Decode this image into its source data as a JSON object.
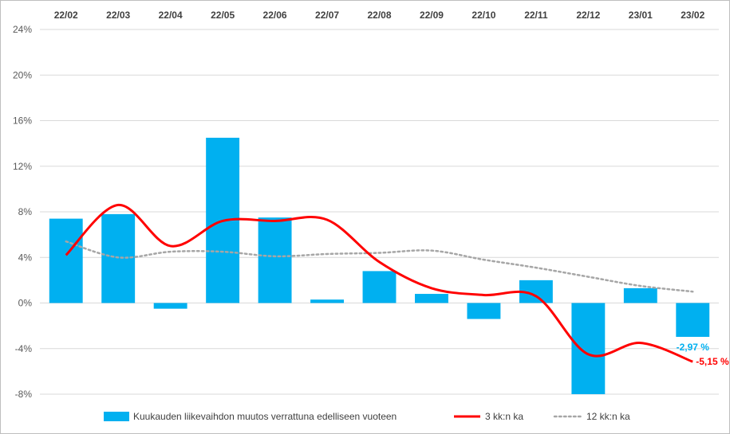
{
  "chart_data": {
    "type": "bar",
    "categories": [
      "22/02",
      "22/03",
      "22/04",
      "22/05",
      "22/06",
      "22/07",
      "22/08",
      "22/09",
      "22/10",
      "22/11",
      "22/12",
      "23/01",
      "23/02"
    ],
    "ylim": [
      -8,
      24
    ],
    "yticks": [
      -8,
      -4,
      0,
      4,
      8,
      12,
      16,
      20,
      24
    ],
    "ytick_labels": [
      "-8%",
      "-4%",
      "0%",
      "4%",
      "8%",
      "12%",
      "16%",
      "20%",
      "24%"
    ],
    "x_axis_position": "top",
    "grid": true,
    "legend_position": "bottom",
    "series": [
      {
        "name": "Kuukauden liikevaihdon muutos verrattuna edelliseen vuoteen",
        "kind": "bar",
        "color": "#00b0f0",
        "values": [
          7.4,
          7.8,
          -0.5,
          14.5,
          7.5,
          0.3,
          2.8,
          0.8,
          -1.4,
          2.0,
          -8.0,
          1.3,
          -2.97
        ]
      },
      {
        "name": "3 kk:n ka",
        "kind": "line",
        "style": "solid-smooth",
        "color": "#ff0000",
        "values": [
          4.2,
          8.6,
          5.0,
          7.2,
          7.2,
          7.3,
          3.6,
          1.3,
          0.7,
          0.6,
          -4.5,
          -3.5,
          -5.15
        ]
      },
      {
        "name": "12 kk:n ka",
        "kind": "line",
        "style": "dotted-smooth",
        "color": "#a6a6a6",
        "values": [
          5.4,
          4.0,
          4.5,
          4.5,
          4.1,
          4.3,
          4.4,
          4.6,
          3.8,
          3.1,
          2.3,
          1.5,
          1.0
        ]
      }
    ],
    "annotations": [
      {
        "text": "-2,97 %",
        "series": 0,
        "index": 12,
        "color": "#00b0f0"
      },
      {
        "text": "-5,15 %",
        "series": 1,
        "index": 12,
        "color": "#ff0000"
      }
    ]
  }
}
